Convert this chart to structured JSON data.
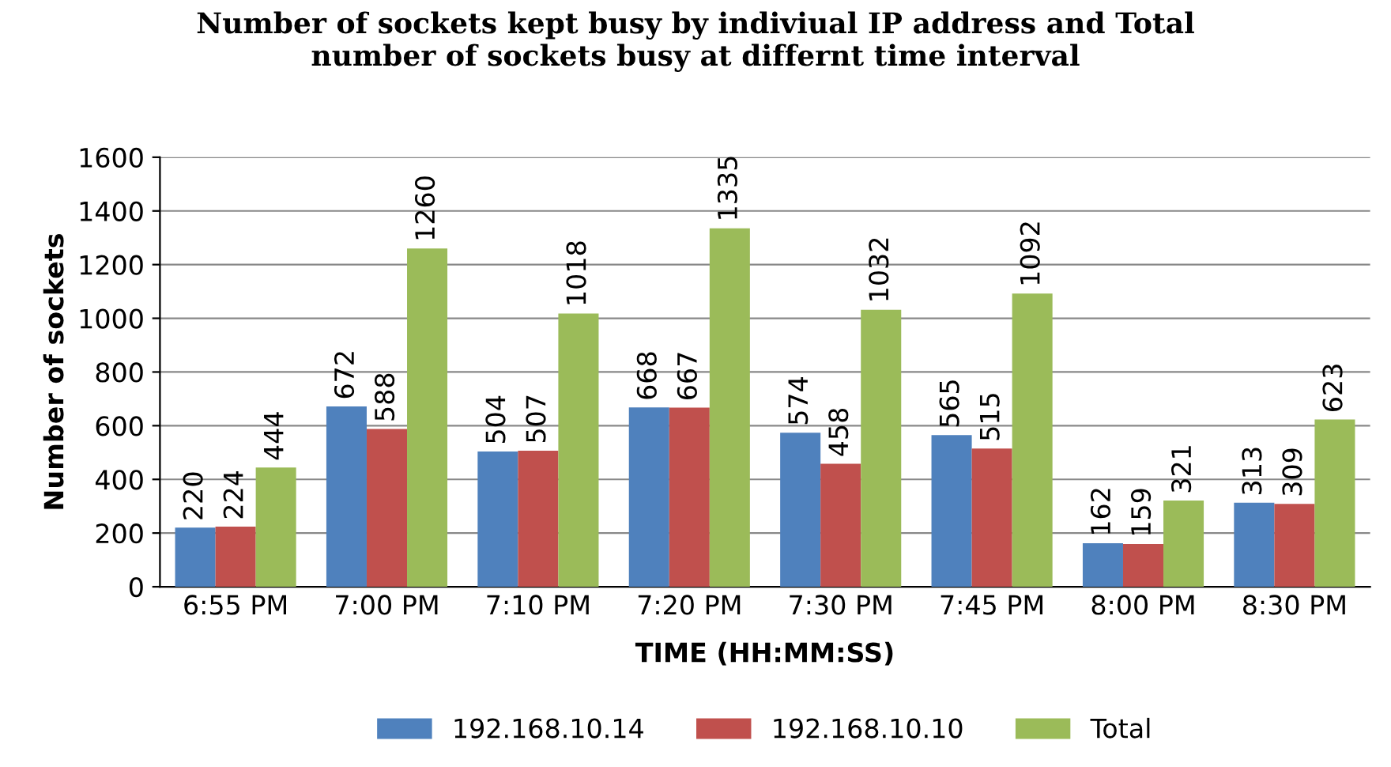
{
  "chart_data": {
    "type": "bar",
    "title": "Number of sockets kept busy by indiviual IP address and Total\nnumber of sockets busy at differnt time interval",
    "xlabel": "TIME (HH:MM:SS)",
    "ylabel": "Number of sockets",
    "categories": [
      "6:55 PM",
      "7:00 PM",
      "7:10 PM",
      "7:20 PM",
      "7:30 PM",
      "7:45 PM",
      "8:00 PM",
      "8:30 PM"
    ],
    "series": [
      {
        "name": "192.168.10.14",
        "color": "#4f81bd",
        "values": [
          220,
          672,
          504,
          668,
          574,
          565,
          162,
          313
        ]
      },
      {
        "name": "192.168.10.10",
        "color": "#c0504d",
        "values": [
          224,
          588,
          507,
          667,
          458,
          515,
          159,
          309
        ]
      },
      {
        "name": "Total",
        "color": "#9bbb59",
        "values": [
          444,
          1260,
          1018,
          1335,
          1032,
          1092,
          321,
          623
        ]
      }
    ],
    "ylim": [
      0,
      1600
    ],
    "yticks": [
      0,
      200,
      400,
      600,
      800,
      1000,
      1200,
      1400,
      1600
    ],
    "grid": "y",
    "legend": "bottom",
    "data_labels": true
  }
}
